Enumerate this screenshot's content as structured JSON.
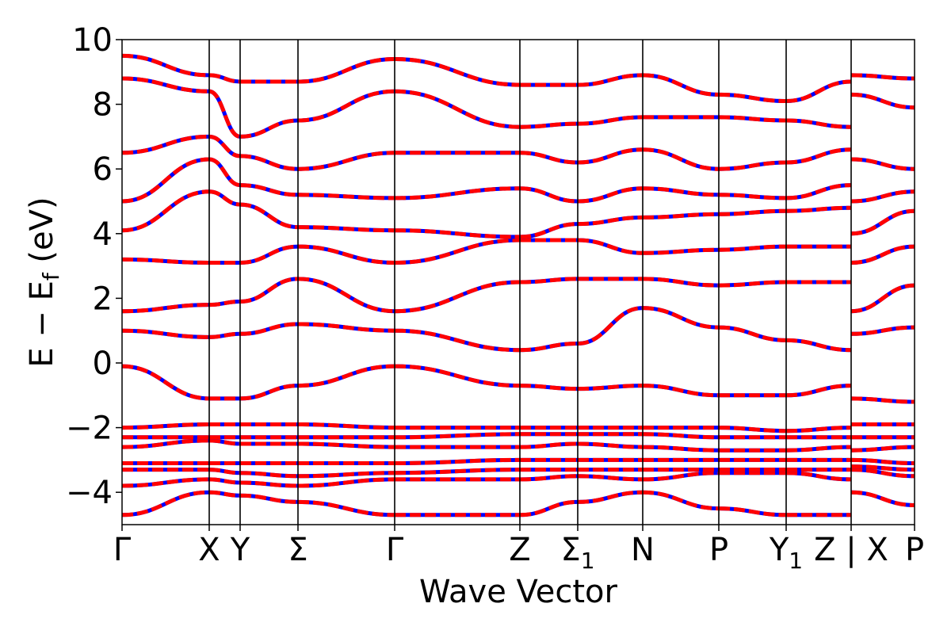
{
  "chart_data": {
    "type": "line",
    "title": "",
    "xlabel": "Wave Vector",
    "ylabel": "E − E",
    "ylabel_sub": "f",
    "ylabel_unit": " (eV)",
    "ylim": [
      -5,
      10
    ],
    "yticks": [
      -4,
      -2,
      0,
      2,
      4,
      6,
      8,
      10
    ],
    "ytick_labels": [
      "−4",
      "−2",
      "0",
      "2",
      "4",
      "6",
      "8",
      "10"
    ],
    "xlim": [
      0,
      1
    ],
    "kpoints": [
      {
        "x": 0.0,
        "label": "Γ",
        "sub": ""
      },
      {
        "x": 0.11,
        "label": "X",
        "sub": ""
      },
      {
        "x": 0.149,
        "label": "Y",
        "sub": ""
      },
      {
        "x": 0.222,
        "label": "Σ",
        "sub": ""
      },
      {
        "x": 0.344,
        "label": "Γ",
        "sub": ""
      },
      {
        "x": 0.502,
        "label": "Z",
        "sub": ""
      },
      {
        "x": 0.575,
        "label": "Σ",
        "sub": "1"
      },
      {
        "x": 0.657,
        "label": "N",
        "sub": ""
      },
      {
        "x": 0.753,
        "label": "P",
        "sub": ""
      },
      {
        "x": 0.838,
        "label": "Y",
        "sub": "1"
      },
      {
        "x": 0.92,
        "label": "Z | X",
        "sub": ""
      },
      {
        "x": 1.0,
        "label": "P",
        "sub": ""
      }
    ],
    "grid": false,
    "legend": "none",
    "colors": {
      "series_a": "#0000ff",
      "series_b": "#ff0000"
    },
    "band_energies_at_kpoints": [
      [
        -4.7,
        -4.0,
        -4.1,
        -4.3,
        -4.7,
        -4.7,
        -4.3,
        -4.0,
        -4.5,
        -4.7,
        -4.7,
        -4.0,
        -4.4
      ],
      [
        -3.8,
        -3.6,
        -3.7,
        -3.8,
        -3.6,
        -3.6,
        -3.5,
        -3.6,
        -3.4,
        -3.4,
        -3.6,
        -3.3,
        -3.5
      ],
      [
        -3.3,
        -3.3,
        -3.4,
        -3.5,
        -3.4,
        -3.3,
        -3.3,
        -3.3,
        -3.3,
        -3.3,
        -3.3,
        -3.2,
        -3.3
      ],
      [
        -3.1,
        -3.1,
        -3.1,
        -3.1,
        -3.1,
        -3.0,
        -3.0,
        -3.0,
        -3.0,
        -3.0,
        -3.0,
        -3.0,
        -3.1
      ],
      [
        -2.6,
        -2.4,
        -2.5,
        -2.5,
        -2.6,
        -2.6,
        -2.5,
        -2.6,
        -2.7,
        -2.7,
        -2.6,
        -2.7,
        -2.6
      ],
      [
        -2.3,
        -2.3,
        -2.3,
        -2.3,
        -2.3,
        -2.2,
        -2.2,
        -2.2,
        -2.3,
        -2.3,
        -2.3,
        -2.3,
        -2.3
      ],
      [
        -2.0,
        -1.9,
        -1.9,
        -1.9,
        -2.0,
        -2.0,
        -2.0,
        -2.0,
        -2.0,
        -2.1,
        -2.0,
        -1.9,
        -1.9
      ],
      [
        -0.1,
        -1.1,
        -1.1,
        -0.7,
        -0.1,
        -0.7,
        -0.8,
        -0.7,
        -1.0,
        -1.0,
        -0.7,
        -1.1,
        -1.2
      ],
      [
        1.0,
        0.8,
        0.9,
        1.2,
        1.0,
        0.4,
        0.6,
        1.7,
        1.1,
        0.7,
        0.4,
        0.9,
        1.1
      ],
      [
        1.6,
        1.8,
        1.9,
        2.6,
        1.6,
        2.5,
        2.6,
        2.6,
        2.4,
        2.5,
        2.5,
        1.6,
        2.4
      ],
      [
        3.2,
        3.1,
        3.1,
        3.6,
        3.1,
        3.8,
        3.8,
        3.4,
        3.5,
        3.6,
        3.6,
        3.1,
        3.6
      ],
      [
        4.1,
        5.3,
        4.9,
        4.2,
        4.1,
        3.9,
        4.3,
        4.5,
        4.6,
        4.7,
        4.8,
        4.0,
        4.7
      ],
      [
        5.0,
        6.3,
        5.5,
        5.2,
        5.1,
        5.4,
        5.0,
        5.4,
        5.2,
        5.1,
        5.5,
        5.0,
        5.3
      ],
      [
        6.5,
        7.0,
        6.4,
        6.0,
        6.5,
        6.5,
        6.2,
        6.6,
        6.0,
        6.2,
        6.6,
        6.3,
        6.0
      ],
      [
        8.8,
        8.4,
        7.0,
        7.5,
        8.4,
        7.3,
        7.4,
        7.6,
        7.6,
        7.5,
        7.3,
        8.3,
        7.9
      ],
      [
        9.5,
        8.9,
        8.7,
        8.7,
        9.4,
        8.6,
        8.6,
        8.9,
        8.3,
        8.1,
        8.7,
        8.9,
        8.8
      ]
    ]
  }
}
